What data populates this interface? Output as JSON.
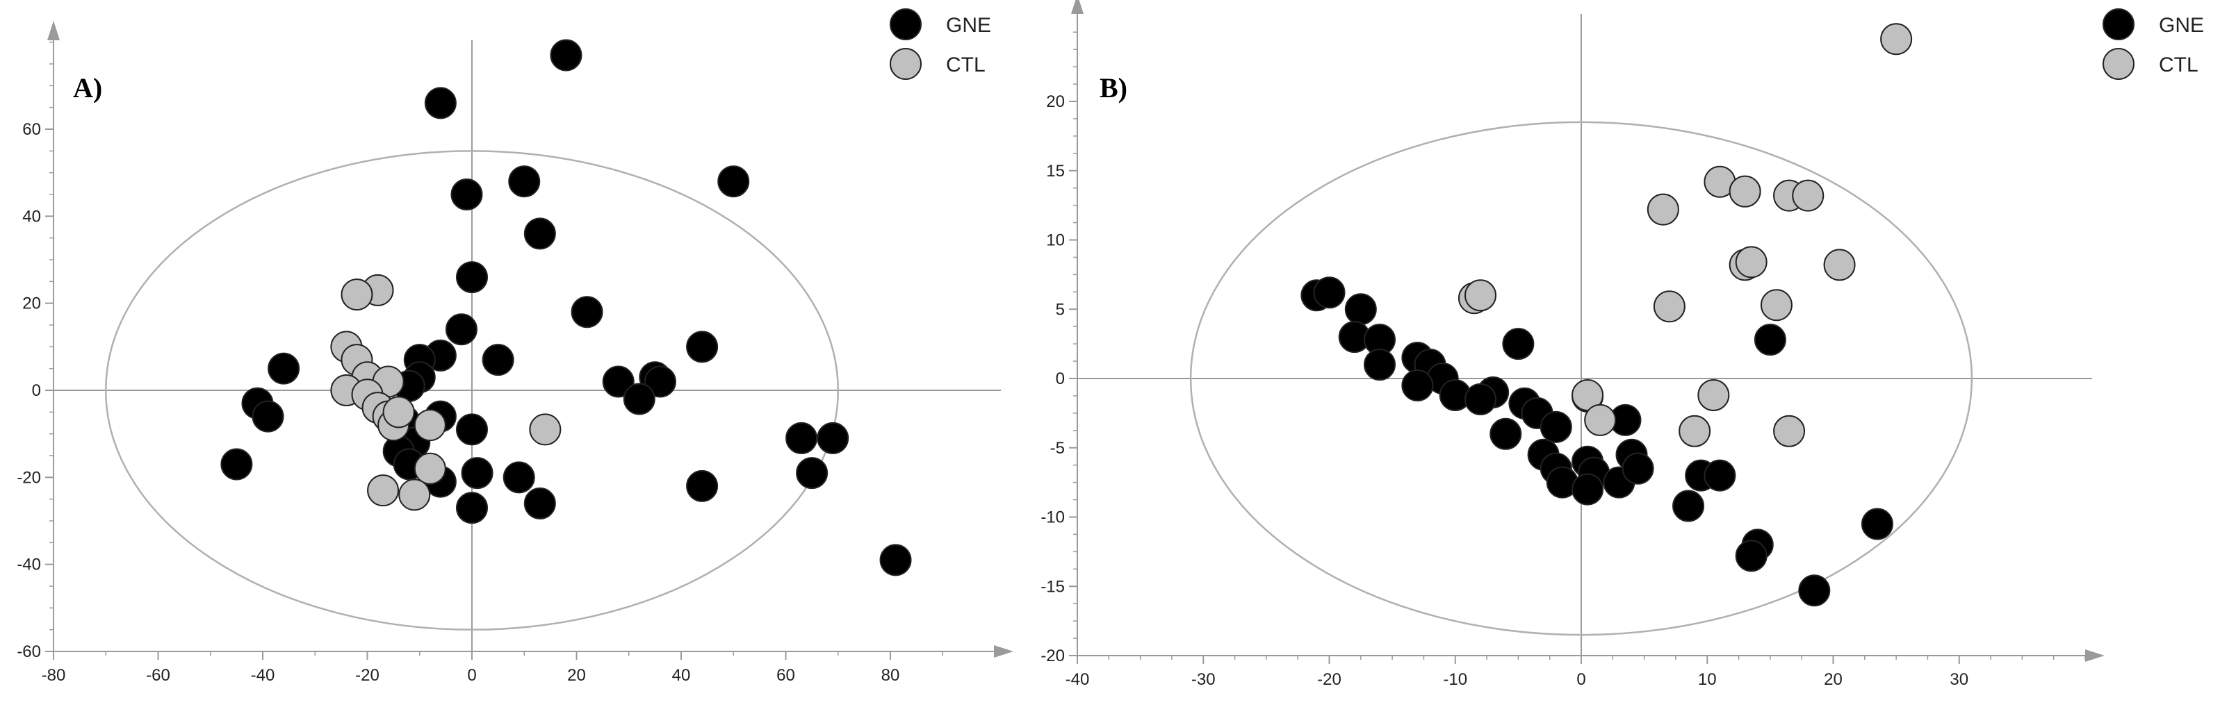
{
  "legend": {
    "items": [
      {
        "label": "GNE",
        "color": "#000000"
      },
      {
        "label": "CTL",
        "color": "#c0c0c0"
      }
    ]
  },
  "chart_data": [
    {
      "type": "scatter",
      "panel_label": "A)",
      "title": "",
      "xlabel": "",
      "ylabel": "",
      "xlim": [
        -80,
        100
      ],
      "ylim": [
        -60,
        80
      ],
      "xticks": [
        "-80",
        "-60",
        "-40",
        "-20",
        "0",
        "20",
        "40",
        "60",
        "80"
      ],
      "yticks": [
        "60",
        "40",
        "20",
        "0",
        "-20",
        "-40",
        "-60"
      ],
      "ellipse": {
        "rx": 70,
        "ry": 55
      },
      "series": [
        {
          "name": "GNE",
          "color": "#000000",
          "points": [
            [
              18,
              77
            ],
            [
              -6,
              66
            ],
            [
              50,
              48
            ],
            [
              10,
              48
            ],
            [
              -1,
              45
            ],
            [
              13,
              36
            ],
            [
              0,
              26
            ],
            [
              22,
              18
            ],
            [
              -2,
              14
            ],
            [
              44,
              10
            ],
            [
              5,
              7
            ],
            [
              -6,
              8
            ],
            [
              -10,
              7
            ],
            [
              -36,
              5
            ],
            [
              -10,
              3
            ],
            [
              -12,
              1
            ],
            [
              28,
              2
            ],
            [
              35,
              3
            ],
            [
              36,
              2
            ],
            [
              32,
              -2
            ],
            [
              -41,
              -3
            ],
            [
              -39,
              -6
            ],
            [
              -6,
              -6
            ],
            [
              -13,
              -7
            ],
            [
              0,
              -9
            ],
            [
              -11,
              -12
            ],
            [
              -14,
              -14
            ],
            [
              63,
              -11
            ],
            [
              69,
              -11
            ],
            [
              -12,
              -17
            ],
            [
              -45,
              -17
            ],
            [
              65,
              -19
            ],
            [
              1,
              -19
            ],
            [
              9,
              -20
            ],
            [
              -6,
              -21
            ],
            [
              44,
              -22
            ],
            [
              13,
              -26
            ],
            [
              0,
              -27
            ],
            [
              81,
              -39
            ]
          ]
        },
        {
          "name": "CTL",
          "color": "#c0c0c0",
          "points": [
            [
              -18,
              23
            ],
            [
              -22,
              22
            ],
            [
              -24,
              10
            ],
            [
              -22,
              7
            ],
            [
              -20,
              3
            ],
            [
              -16,
              2
            ],
            [
              -24,
              0
            ],
            [
              -20,
              -1
            ],
            [
              -18,
              -4
            ],
            [
              -16,
              -6
            ],
            [
              -15,
              -8
            ],
            [
              -14,
              -5
            ],
            [
              -8,
              -8
            ],
            [
              14,
              -9
            ],
            [
              -8,
              -18
            ],
            [
              -17,
              -23
            ],
            [
              -11,
              -24
            ]
          ]
        }
      ]
    },
    {
      "type": "scatter",
      "panel_label": "B)",
      "title": "",
      "xlabel": "",
      "ylabel": "",
      "xlim": [
        -40,
        40
      ],
      "ylim": [
        -20,
        25
      ],
      "xticks": [
        "-40",
        "-30",
        "-20",
        "-10",
        "0",
        "10",
        "20",
        "30"
      ],
      "yticks": [
        "20",
        "15",
        "10",
        "5",
        "0",
        "-5",
        "-10",
        "-15",
        "-20"
      ],
      "ellipse": {
        "rx": 31,
        "ry": 18.5
      },
      "series": [
        {
          "name": "GNE",
          "color": "#000000",
          "points": [
            [
              -21,
              6
            ],
            [
              -20,
              6.2
            ],
            [
              -17.5,
              5
            ],
            [
              -18,
              3
            ],
            [
              -16,
              2.8
            ],
            [
              -16,
              1
            ],
            [
              -13,
              1.5
            ],
            [
              -12,
              1
            ],
            [
              -11,
              0
            ],
            [
              -13,
              -0.5
            ],
            [
              -10,
              -1.2
            ],
            [
              -7,
              -1
            ],
            [
              -8,
              -1.5
            ],
            [
              -5,
              2.5
            ],
            [
              -4.5,
              -1.8
            ],
            [
              -3.5,
              -2.5
            ],
            [
              -2,
              -3.5
            ],
            [
              -6,
              -4
            ],
            [
              -3,
              -5.5
            ],
            [
              -2,
              -6.5
            ],
            [
              -1.5,
              -7.5
            ],
            [
              0.5,
              -1.3
            ],
            [
              0.5,
              -6
            ],
            [
              1,
              -6.8
            ],
            [
              0.5,
              -8
            ],
            [
              3,
              -7.5
            ],
            [
              3.5,
              -3
            ],
            [
              4,
              -5.5
            ],
            [
              4.5,
              -6.5
            ],
            [
              8.5,
              -9.2
            ],
            [
              9.5,
              -7
            ],
            [
              11,
              -7
            ],
            [
              15,
              2.8
            ],
            [
              14,
              -12
            ],
            [
              13.5,
              -12.8
            ],
            [
              18.5,
              -15.3
            ],
            [
              23.5,
              -10.5
            ]
          ]
        },
        {
          "name": "CTL",
          "color": "#c0c0c0",
          "points": [
            [
              25,
              24.5
            ],
            [
              6.5,
              12.2
            ],
            [
              11,
              14.2
            ],
            [
              13,
              13.5
            ],
            [
              16.5,
              13.2
            ],
            [
              18,
              13.2
            ],
            [
              13,
              8.2
            ],
            [
              13.5,
              8.4
            ],
            [
              20.5,
              8.2
            ],
            [
              7,
              5.2
            ],
            [
              15.5,
              5.3
            ],
            [
              -8.5,
              5.8
            ],
            [
              -8,
              6
            ],
            [
              0.5,
              -1.2
            ],
            [
              10.5,
              -1.2
            ],
            [
              1.5,
              -3
            ],
            [
              9,
              -3.8
            ],
            [
              16.5,
              -3.8
            ]
          ]
        }
      ]
    }
  ]
}
